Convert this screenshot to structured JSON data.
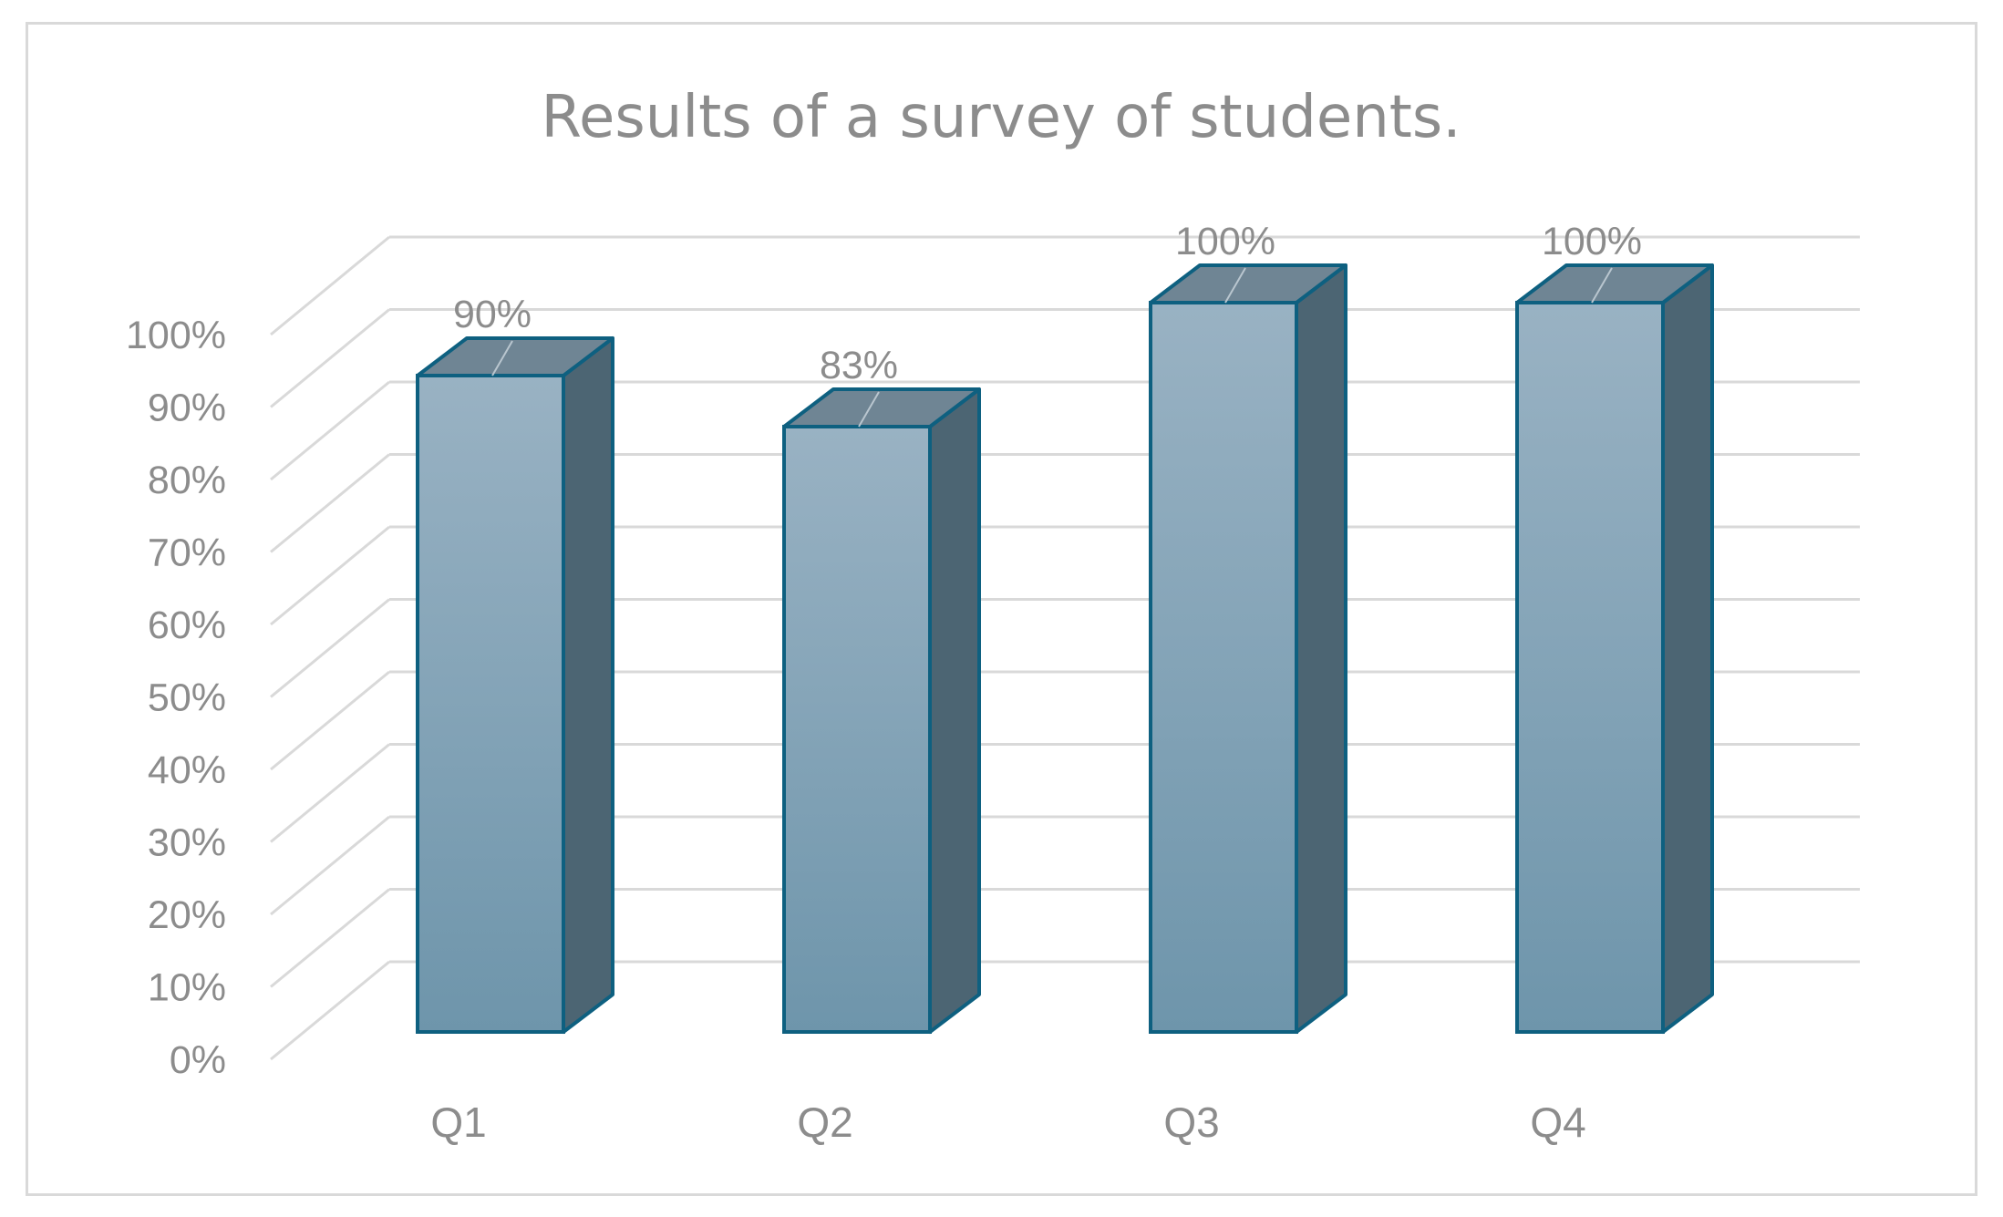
{
  "chart_data": {
    "type": "bar",
    "title": "Results of a survey of students.",
    "categories": [
      "Q1",
      "Q2",
      "Q3",
      "Q4"
    ],
    "series": [
      {
        "values": [
          90,
          83,
          100,
          100
        ]
      }
    ],
    "data_labels": [
      "90%",
      "83%",
      "100%",
      "100%"
    ],
    "ylim": [
      0,
      100
    ],
    "y_ticks": [
      "0%",
      "10%",
      "20%",
      "30%",
      "40%",
      "50%",
      "60%",
      "70%",
      "80%",
      "90%",
      "100%"
    ],
    "grid": true,
    "style": "3d-column",
    "colors": {
      "bar_front_top": "#99b2c3",
      "bar_front_bottom": "#6e95ab",
      "bar_side": "#4c6573",
      "bar_top": "#6f8594",
      "bar_outline": "#0e6080",
      "grid": "#d9d9d9",
      "text": "#8c8c8c"
    }
  }
}
